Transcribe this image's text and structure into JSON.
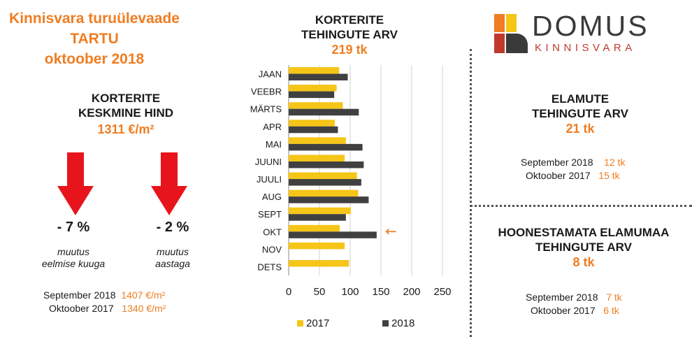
{
  "header": {
    "title_line1": "Kinnisvara turuülevaade",
    "title_line2": "TARTU",
    "title_line3": "oktoober 2018"
  },
  "price": {
    "label_line1": "KORTERITE",
    "label_line2": "KESKMINE HIND",
    "value": "1311 €/m²",
    "monthly_change": "- 7 %",
    "monthly_note_line1": "muutus",
    "monthly_note_line2": "eelmise kuuga",
    "yearly_change": "- 2 %",
    "yearly_note_line1": "muutus",
    "yearly_note_line2": "aastaga",
    "compare": [
      {
        "label": "September 2018",
        "value": "1407 €/m²"
      },
      {
        "label": "Oktoober 2017",
        "value": "1340 €/m²"
      }
    ]
  },
  "apartments": {
    "title_line1": "KORTERITE",
    "title_line2": "TEHINGUTE ARV",
    "total": "219 tk"
  },
  "logo": {
    "word": "DOMUS",
    "sub": "KINNISVARA"
  },
  "houses": {
    "title_line1": "ELAMUTE",
    "title_line2": "TEHINGUTE ARV",
    "total": "21 tk",
    "compare": [
      {
        "label": "September 2018",
        "value": "12 tk"
      },
      {
        "label": "Oktoober 2017",
        "value": "15 tk"
      }
    ]
  },
  "land": {
    "title_line1": "HOONESTAMATA ELAMUMAA",
    "title_line2": "TEHINGUTE ARV",
    "total": "8 tk",
    "compare": [
      {
        "label": "September 2018",
        "value": "7 tk"
      },
      {
        "label": "Oktoober 2017",
        "value": "6 tk"
      }
    ]
  },
  "colors": {
    "accent": "#ef7d22",
    "arrow": "#e8141b",
    "bar_2017": "#f5c518",
    "bar_2018": "#404040"
  },
  "chart_data": {
    "type": "bar",
    "orientation": "horizontal",
    "categories": [
      "JAAN",
      "VEEBR",
      "MÄRTS",
      "APR",
      "MAI",
      "JUUNI",
      "JUULI",
      "AUG",
      "SEPT",
      "OKT",
      "NOV",
      "DETS"
    ],
    "series": [
      {
        "name": "2017",
        "values": [
          82,
          78,
          88,
          75,
          93,
          91,
          111,
          113,
          101,
          83,
          91,
          98
        ]
      },
      {
        "name": "2018",
        "values": [
          96,
          74,
          114,
          80,
          120,
          122,
          118,
          130,
          93,
          143,
          null,
          null
        ]
      }
    ],
    "xlim": [
      0,
      250
    ],
    "xticks": [
      0,
      50,
      100,
      150,
      200,
      250
    ],
    "grid": true,
    "legend_position": "bottom",
    "highlight_category": "OKT",
    "highlight_marker": "←"
  }
}
